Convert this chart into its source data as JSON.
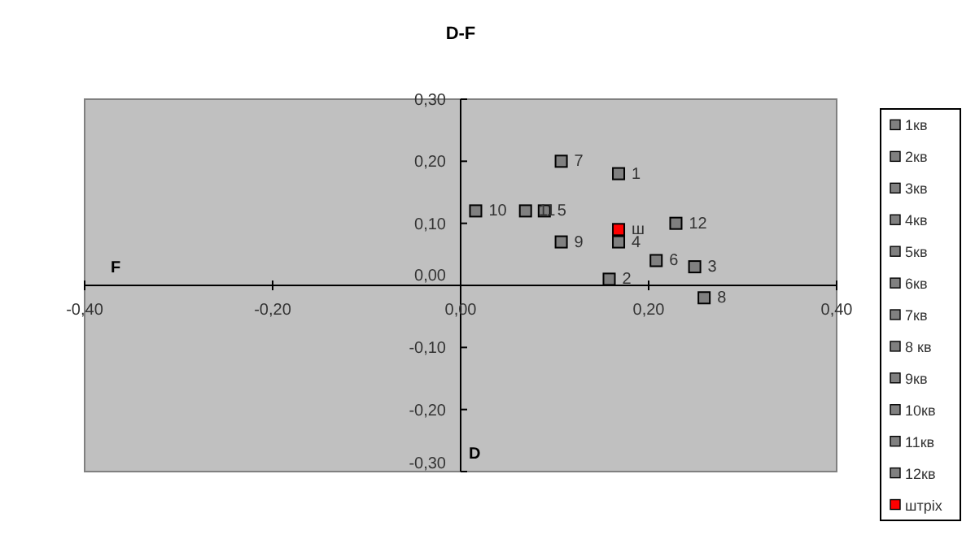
{
  "chart_data": {
    "type": "scatter",
    "title": "D-F",
    "xlabel": "F",
    "ylabel": "D",
    "xlim": [
      -0.4,
      0.4
    ],
    "ylim": [
      -0.3,
      0.3
    ],
    "xticks": [
      {
        "value": -0.4,
        "label": "-0,40"
      },
      {
        "value": -0.2,
        "label": "-0,20"
      },
      {
        "value": 0,
        "label": "0,00"
      },
      {
        "value": 0.2,
        "label": "0,20"
      },
      {
        "value": 0.4,
        "label": "0,40"
      }
    ],
    "yticks": [
      {
        "value": -0.3,
        "label": "-0,30"
      },
      {
        "value": -0.2,
        "label": "-0,20"
      },
      {
        "value": -0.1,
        "label": "-0,10"
      },
      {
        "value": 0,
        "label": "0,00"
      },
      {
        "value": 0.1,
        "label": "0,10"
      },
      {
        "value": 0.2,
        "label": "0,20"
      },
      {
        "value": 0.3,
        "label": "0,30"
      }
    ],
    "grid": false,
    "legend": "right",
    "marker": "square",
    "series": [
      {
        "name": "1кв",
        "color": "#808080",
        "x": [
          0.168
        ],
        "values": [
          0.18
        ]
      },
      {
        "name": "2кв",
        "color": "#808080",
        "x": [
          0.158
        ],
        "values": [
          0.01
        ]
      },
      {
        "name": "3кв",
        "color": "#808080",
        "x": [
          0.249
        ],
        "values": [
          0.03
        ]
      },
      {
        "name": "4кв",
        "color": "#808080",
        "x": [
          0.168
        ],
        "values": [
          0.07
        ]
      },
      {
        "name": "5кв",
        "color": "#808080",
        "x": [
          0.089
        ],
        "values": [
          0.12
        ]
      },
      {
        "name": "6кв",
        "color": "#808080",
        "x": [
          0.208
        ],
        "values": [
          0.04
        ]
      },
      {
        "name": "7кв",
        "color": "#808080",
        "x": [
          0.107
        ],
        "values": [
          0.2
        ]
      },
      {
        "name": "8 кв",
        "color": "#808080",
        "x": [
          0.259
        ],
        "values": [
          -0.02
        ]
      },
      {
        "name": "9кв",
        "color": "#808080",
        "x": [
          0.107
        ],
        "values": [
          0.07
        ]
      },
      {
        "name": "10кв",
        "color": "#808080",
        "x": [
          0.016
        ],
        "values": [
          0.12
        ]
      },
      {
        "name": "11кв",
        "color": "#808080",
        "x": [
          0.069
        ],
        "values": [
          0.12
        ]
      },
      {
        "name": "12кв",
        "color": "#808080",
        "x": [
          0.229
        ],
        "values": [
          0.1
        ]
      },
      {
        "name": "штріх",
        "color": "#ff0000",
        "x": [
          0.168
        ],
        "values": [
          0.09
        ]
      }
    ],
    "annotations": [
      {
        "text": "1",
        "x": 0.168,
        "y": 0.18
      },
      {
        "text": "2",
        "x": 0.158,
        "y": 0.01
      },
      {
        "text": "3",
        "x": 0.249,
        "y": 0.03
      },
      {
        "text": "4",
        "x": 0.168,
        "y": 0.07
      },
      {
        "text": "5",
        "x": 0.089,
        "y": 0.12
      },
      {
        "text": "6",
        "x": 0.208,
        "y": 0.04
      },
      {
        "text": "7",
        "x": 0.107,
        "y": 0.2
      },
      {
        "text": "8",
        "x": 0.259,
        "y": -0.02
      },
      {
        "text": "9",
        "x": 0.107,
        "y": 0.07
      },
      {
        "text": "10",
        "x": 0.016,
        "y": 0.12
      },
      {
        "text": "11",
        "x": 0.069,
        "y": 0.12
      },
      {
        "text": "12",
        "x": 0.229,
        "y": 0.1
      },
      {
        "text": "ш",
        "x": 0.168,
        "y": 0.09
      }
    ]
  }
}
